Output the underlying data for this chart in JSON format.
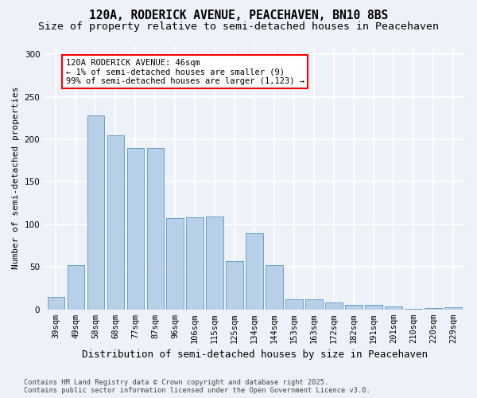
{
  "title1": "120A, RODERICK AVENUE, PEACEHAVEN, BN10 8BS",
  "title2": "Size of property relative to semi-detached houses in Peacehaven",
  "xlabel": "Distribution of semi-detached houses by size in Peacehaven",
  "ylabel": "Number of semi-detached properties",
  "categories": [
    "39sqm",
    "49sqm",
    "58sqm",
    "68sqm",
    "77sqm",
    "87sqm",
    "96sqm",
    "106sqm",
    "115sqm",
    "125sqm",
    "134sqm",
    "144sqm",
    "153sqm",
    "163sqm",
    "172sqm",
    "182sqm",
    "191sqm",
    "201sqm",
    "210sqm",
    "220sqm",
    "229sqm"
  ],
  "values": [
    15,
    52,
    228,
    205,
    190,
    190,
    107,
    108,
    109,
    57,
    90,
    52,
    12,
    12,
    8,
    5,
    5,
    4,
    1,
    2,
    3
  ],
  "bar_color": "#b8cfe8",
  "bar_edge_color": "#6a9fc8",
  "annotation_text": "120A RODERICK AVENUE: 46sqm\n← 1% of semi-detached houses are smaller (9)\n99% of semi-detached houses are larger (1,123) →",
  "annotation_box_color": "white",
  "annotation_box_edge_color": "red",
  "footer1": "Contains HM Land Registry data © Crown copyright and database right 2025.",
  "footer2": "Contains public sector information licensed under the Open Government Licence v3.0.",
  "ylim": [
    0,
    310
  ],
  "yticks": [
    0,
    50,
    100,
    150,
    200,
    250,
    300
  ],
  "background_color": "#eef2f8",
  "grid_color": "#ffffff",
  "title_fontsize": 10.5,
  "subtitle_fontsize": 9.5,
  "tick_fontsize": 7.5,
  "ylabel_fontsize": 8,
  "xlabel_fontsize": 9
}
